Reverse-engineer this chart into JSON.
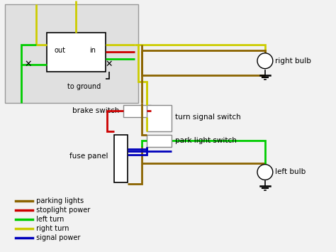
{
  "bg_color": "#f2f2f2",
  "colors": {
    "parking": "#8B6400",
    "stoplight": "#cc0000",
    "left_turn": "#00cc00",
    "right_turn": "#cccc00",
    "signal": "#0000bb",
    "black": "#000000",
    "white": "#ffffff",
    "gray": "#aaaaaa",
    "inset_bg": "#e0e0e0"
  },
  "legend": [
    {
      "label": " parking lights",
      "color": "#8B6400"
    },
    {
      "label": " stoplight power",
      "color": "#cc0000"
    },
    {
      "label": " left turn",
      "color": "#00cc00"
    },
    {
      "label": " right turn",
      "color": "#cccc00"
    },
    {
      "label": " signal power",
      "color": "#0000bb"
    }
  ],
  "labels": {
    "brake_switch": "brake switch",
    "turn_signal_switch": "turn signal switch",
    "fuse_panel": "fuse panel",
    "park_light_switch": "park light switch",
    "right_bulb": "right bulb",
    "left_bulb": "left bulb",
    "out": "out",
    "in": "in",
    "to_ground": "to ground"
  },
  "font_size": 7.5,
  "line_width": 2.0
}
